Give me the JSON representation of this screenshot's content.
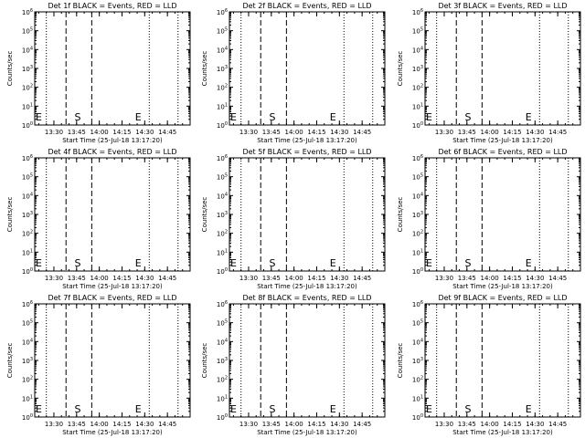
{
  "chart_data": [
    {
      "type": "line",
      "title": "Det 1f BLACK = Events, RED = LLD",
      "xlabel": "Start Time (25-Jul-18 13:17:20)",
      "ylabel": "Counts/sec",
      "yscale": "log",
      "ylim": [
        1,
        1000000
      ],
      "ytick_labels": [
        "10^0",
        "10^1",
        "10^2",
        "10^3",
        "10^4",
        "10^5",
        "10^6"
      ],
      "xtick_labels": [
        "13:30",
        "13:45",
        "14:00",
        "14:15",
        "14:30",
        "14:45"
      ],
      "dotted_lines": [
        "13:25",
        "14:33",
        "14:52"
      ],
      "dashed_lines": [
        "13:38",
        "13:55"
      ],
      "markers": [
        {
          "label": "E",
          "at": "13:17:20"
        },
        {
          "label": "S",
          "at": "13:43"
        },
        {
          "label": "E",
          "at": "14:23"
        }
      ],
      "series": []
    },
    {
      "type": "line",
      "title": "Det 2f BLACK = Events, RED = LLD",
      "xlabel": "Start Time (25-Jul-18 13:17:20)",
      "ylabel": "Counts/sec",
      "yscale": "log",
      "ylim": [
        1,
        1000000
      ],
      "ytick_labels": [
        "10^0",
        "10^1",
        "10^2",
        "10^3",
        "10^4",
        "10^5",
        "10^6"
      ],
      "xtick_labels": [
        "13:30",
        "13:45",
        "14:00",
        "14:15",
        "14:30",
        "14:45"
      ],
      "dotted_lines": [
        "13:25",
        "14:33",
        "14:52"
      ],
      "dashed_lines": [
        "13:38",
        "13:55"
      ],
      "markers": [
        {
          "label": "E",
          "at": "13:17:20"
        },
        {
          "label": "S",
          "at": "13:43"
        },
        {
          "label": "E",
          "at": "14:23"
        }
      ],
      "series": []
    },
    {
      "type": "line",
      "title": "Det 3f BLACK = Events, RED = LLD",
      "xlabel": "Start Time (25-Jul-18 13:17:20)",
      "ylabel": "Counts/sec",
      "yscale": "log",
      "ylim": [
        1,
        1000000
      ],
      "ytick_labels": [
        "10^0",
        "10^1",
        "10^2",
        "10^3",
        "10^4",
        "10^5",
        "10^6"
      ],
      "xtick_labels": [
        "13:30",
        "13:45",
        "14:00",
        "14:15",
        "14:30",
        "14:45"
      ],
      "dotted_lines": [
        "13:25",
        "14:33",
        "14:52"
      ],
      "dashed_lines": [
        "13:38",
        "13:55"
      ],
      "markers": [
        {
          "label": "E",
          "at": "13:17:20"
        },
        {
          "label": "S",
          "at": "13:43"
        },
        {
          "label": "E",
          "at": "14:23"
        }
      ],
      "series": []
    },
    {
      "type": "line",
      "title": "Det 4f BLACK = Events, RED = LLD",
      "xlabel": "Start Time (25-Jul-18 13:17:20)",
      "ylabel": "Counts/sec",
      "yscale": "log",
      "ylim": [
        1,
        1000000
      ],
      "ytick_labels": [
        "10^0",
        "10^1",
        "10^2",
        "10^3",
        "10^4",
        "10^5",
        "10^6"
      ],
      "xtick_labels": [
        "13:30",
        "13:45",
        "14:00",
        "14:15",
        "14:30",
        "14:45"
      ],
      "dotted_lines": [
        "13:25",
        "14:33",
        "14:52"
      ],
      "dashed_lines": [
        "13:38",
        "13:55"
      ],
      "markers": [
        {
          "label": "E",
          "at": "13:17:20"
        },
        {
          "label": "S",
          "at": "13:43"
        },
        {
          "label": "E",
          "at": "14:23"
        }
      ],
      "series": []
    },
    {
      "type": "line",
      "title": "Det 5f BLACK = Events, RED = LLD",
      "xlabel": "Start Time (25-Jul-18 13:17:20)",
      "ylabel": "Counts/sec",
      "yscale": "log",
      "ylim": [
        1,
        1000000
      ],
      "ytick_labels": [
        "10^0",
        "10^1",
        "10^2",
        "10^3",
        "10^4",
        "10^5",
        "10^6"
      ],
      "xtick_labels": [
        "13:30",
        "13:45",
        "14:00",
        "14:15",
        "14:30",
        "14:45"
      ],
      "dotted_lines": [
        "13:25",
        "14:33",
        "14:52"
      ],
      "dashed_lines": [
        "13:38",
        "13:55"
      ],
      "markers": [
        {
          "label": "E",
          "at": "13:17:20"
        },
        {
          "label": "S",
          "at": "13:43"
        },
        {
          "label": "E",
          "at": "14:23"
        }
      ],
      "series": []
    },
    {
      "type": "line",
      "title": "Det 6f BLACK = Events, RED = LLD",
      "xlabel": "Start Time (25-Jul-18 13:17:20)",
      "ylabel": "Counts/sec",
      "yscale": "log",
      "ylim": [
        1,
        1000000
      ],
      "ytick_labels": [
        "10^0",
        "10^1",
        "10^2",
        "10^3",
        "10^4",
        "10^5",
        "10^6"
      ],
      "xtick_labels": [
        "13:30",
        "13:45",
        "14:00",
        "14:15",
        "14:30",
        "14:45"
      ],
      "dotted_lines": [
        "13:25",
        "14:33",
        "14:52"
      ],
      "dashed_lines": [
        "13:38",
        "13:55"
      ],
      "markers": [
        {
          "label": "E",
          "at": "13:17:20"
        },
        {
          "label": "S",
          "at": "13:43"
        },
        {
          "label": "E",
          "at": "14:23"
        }
      ],
      "series": []
    },
    {
      "type": "line",
      "title": "Det 7f BLACK = Events, RED = LLD",
      "xlabel": "Start Time (25-Jul-18 13:17:20)",
      "ylabel": "Counts/sec",
      "yscale": "log",
      "ylim": [
        1,
        1000000
      ],
      "ytick_labels": [
        "10^0",
        "10^1",
        "10^2",
        "10^3",
        "10^4",
        "10^5",
        "10^6"
      ],
      "xtick_labels": [
        "13:30",
        "13:45",
        "14:00",
        "14:15",
        "14:30",
        "14:45"
      ],
      "dotted_lines": [
        "13:25",
        "14:33",
        "14:52"
      ],
      "dashed_lines": [
        "13:38",
        "13:55"
      ],
      "markers": [
        {
          "label": "E",
          "at": "13:17:20"
        },
        {
          "label": "S",
          "at": "13:43"
        },
        {
          "label": "E",
          "at": "14:23"
        }
      ],
      "series": []
    },
    {
      "type": "line",
      "title": "Det 8f BLACK = Events, RED = LLD",
      "xlabel": "Start Time (25-Jul-18 13:17:20)",
      "ylabel": "Counts/sec",
      "yscale": "log",
      "ylim": [
        1,
        1000000
      ],
      "ytick_labels": [
        "10^0",
        "10^1",
        "10^2",
        "10^3",
        "10^4",
        "10^5",
        "10^6"
      ],
      "xtick_labels": [
        "13:30",
        "13:45",
        "14:00",
        "14:15",
        "14:30",
        "14:45"
      ],
      "dotted_lines": [
        "13:25",
        "14:33",
        "14:52"
      ],
      "dashed_lines": [
        "13:38",
        "13:55"
      ],
      "markers": [
        {
          "label": "E",
          "at": "13:17:20"
        },
        {
          "label": "S",
          "at": "13:43"
        },
        {
          "label": "E",
          "at": "14:23"
        }
      ],
      "series": []
    },
    {
      "type": "line",
      "title": "Det 9f BLACK = Events, RED = LLD",
      "xlabel": "Start Time (25-Jul-18 13:17:20)",
      "ylabel": "Counts/sec",
      "yscale": "log",
      "ylim": [
        1,
        1000000
      ],
      "ytick_labels": [
        "10^0",
        "10^1",
        "10^2",
        "10^3",
        "10^4",
        "10^5",
        "10^6"
      ],
      "xtick_labels": [
        "13:30",
        "13:45",
        "14:00",
        "14:15",
        "14:30",
        "14:45"
      ],
      "dotted_lines": [
        "13:25",
        "14:33",
        "14:52"
      ],
      "dashed_lines": [
        "13:38",
        "13:55"
      ],
      "markers": [
        {
          "label": "E",
          "at": "13:17:20"
        },
        {
          "label": "S",
          "at": "13:43"
        },
        {
          "label": "E",
          "at": "14:23"
        }
      ],
      "series": []
    }
  ]
}
